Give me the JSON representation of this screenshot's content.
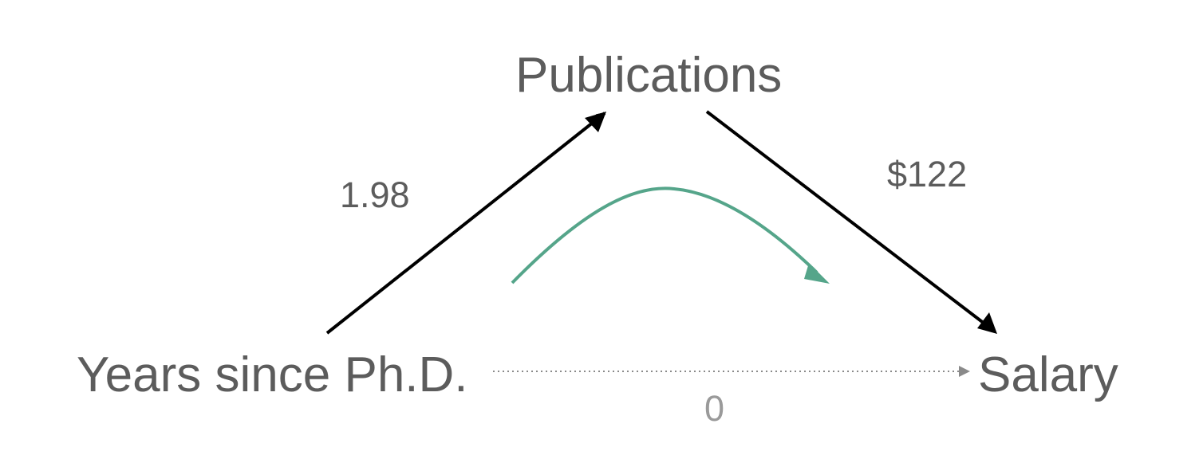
{
  "nodes": {
    "publications": "Publications",
    "years": "Years since Ph.D.",
    "salary": "Salary"
  },
  "edges": {
    "years_to_publications": "1.98",
    "publications_to_salary": "$122",
    "years_to_salary": "0"
  },
  "colors": {
    "text": "#5c5c5c",
    "muted_text": "#9a9a9a",
    "arrow": "#000000",
    "indirect_path": "#55a58a",
    "direct_path": "#8a8a8a"
  }
}
